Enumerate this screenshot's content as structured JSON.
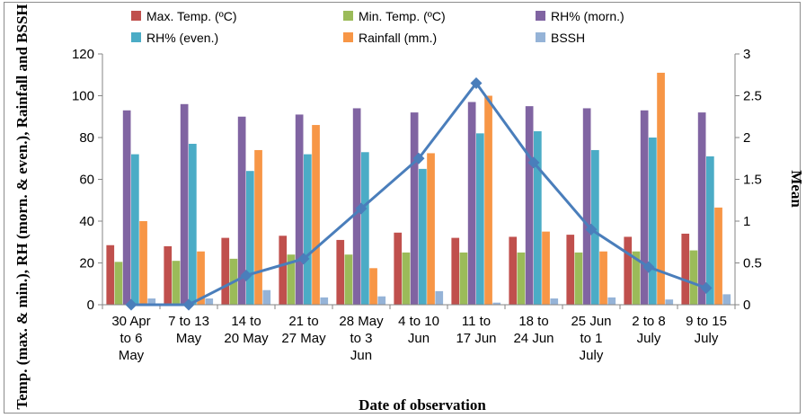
{
  "chart_data": {
    "type": "bar",
    "xlabel": "Date of observation",
    "ylabel": "Temp. (max. & min.), RH (morn. & even.), Rainfall and BSSH",
    "y2label": "Mean",
    "ylim": [
      0,
      120
    ],
    "yticks": [
      0,
      20,
      40,
      60,
      80,
      100,
      120
    ],
    "y2lim": [
      0,
      3
    ],
    "y2ticks": [
      "0",
      "0.5",
      "1",
      "1.5",
      "2",
      "2.5",
      "3"
    ],
    "grid": false,
    "legend_position": "top",
    "categories": [
      [
        "30 Apr",
        "to 6",
        "May"
      ],
      [
        "7 to 13",
        "May"
      ],
      [
        "14 to",
        "20 May"
      ],
      [
        "21 to",
        "27 May"
      ],
      [
        "28 May",
        "to 3",
        "Jun"
      ],
      [
        "4 to 10",
        "Jun"
      ],
      [
        "11 to",
        "17 Jun"
      ],
      [
        "18 to",
        "24 Jun"
      ],
      [
        "25 Jun",
        "to 1",
        "July"
      ],
      [
        "2 to 8",
        "July"
      ],
      [
        "9 to 15",
        "July"
      ]
    ],
    "series": [
      {
        "name": "Max. Temp. (ºC)",
        "color": "#c0504d",
        "values": [
          28.5,
          28,
          32,
          33,
          31,
          34.5,
          32,
          32.5,
          33.5,
          32.5,
          34
        ]
      },
      {
        "name": "Min. Temp. (ºC)",
        "color": "#9bbb59",
        "values": [
          20.5,
          21,
          22,
          24,
          24,
          25,
          25,
          25,
          25,
          25.5,
          26
        ]
      },
      {
        "name": "RH% (morn.)",
        "color": "#8064a2",
        "values": [
          93,
          96,
          90,
          91,
          94,
          92,
          97,
          95,
          94,
          93,
          92
        ]
      },
      {
        "name": "RH% (even.)",
        "color": "#4bacc6",
        "values": [
          72,
          77,
          64,
          72,
          73,
          65,
          82,
          83,
          74,
          80,
          71
        ]
      },
      {
        "name": "Rainfall (mm.)",
        "color": "#f79646",
        "values": [
          40,
          25.5,
          74,
          86,
          17.5,
          72.5,
          100,
          35,
          25.5,
          111,
          46.5
        ]
      },
      {
        "name": "BSSH",
        "color": "#95b3d7",
        "values": [
          3,
          3,
          7,
          3.5,
          4,
          6.5,
          1,
          3,
          3.5,
          2.5,
          5
        ]
      }
    ],
    "line": {
      "axis": "secondary",
      "color": "#4a7ebb",
      "values": [
        0,
        0,
        0.35,
        0.55,
        1.15,
        1.75,
        2.65,
        1.7,
        0.9,
        0.45,
        0.2
      ]
    }
  }
}
